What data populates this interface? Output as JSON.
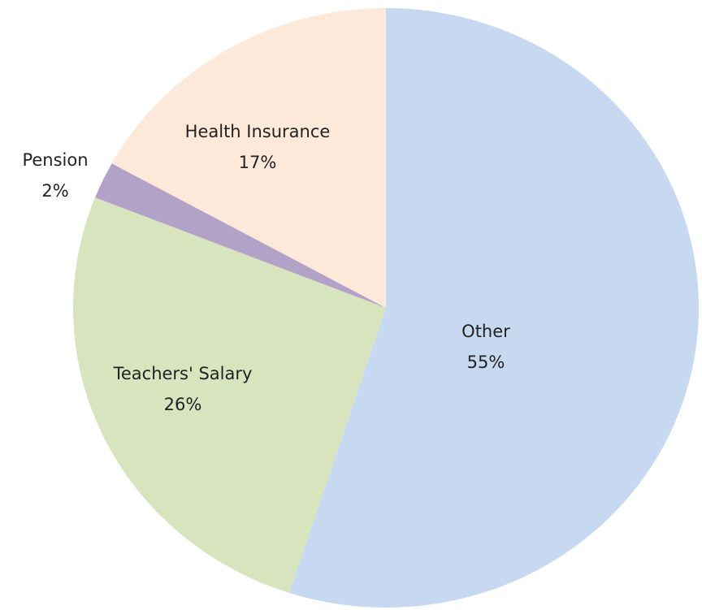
{
  "chart_data": {
    "type": "pie",
    "categories": [
      "Other",
      "Teachers' Salary",
      "Pension",
      "Health Insurance"
    ],
    "values": [
      55,
      26,
      2,
      17
    ],
    "value_labels": [
      "55%",
      "26%",
      "2%",
      "17%"
    ],
    "colors": [
      "#c6d9f1",
      "#d7e4bd",
      "#b3a2c7",
      "#fde9d9"
    ]
  }
}
